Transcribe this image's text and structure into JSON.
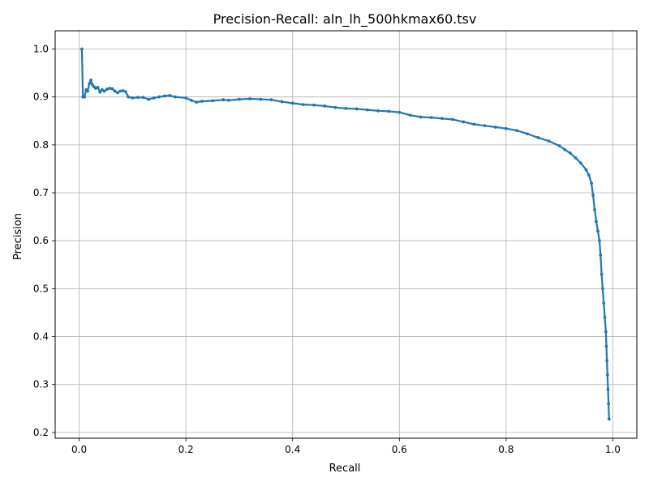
{
  "chart_data": {
    "type": "line",
    "title": "Precision-Recall: aln_lh_500hkmax60.tsv",
    "xlabel": "Recall",
    "ylabel": "Precision",
    "xlim": [
      -0.045,
      1.045
    ],
    "ylim": [
      0.188,
      1.038
    ],
    "xticks": [
      0.0,
      0.2,
      0.4,
      0.6,
      0.8,
      1.0
    ],
    "xtick_labels": [
      "0.0",
      "0.2",
      "0.4",
      "0.6",
      "0.8",
      "1.0"
    ],
    "yticks": [
      0.2,
      0.3,
      0.4,
      0.5,
      0.6,
      0.7,
      0.8,
      0.9,
      1.0
    ],
    "ytick_labels": [
      "0.2",
      "0.3",
      "0.4",
      "0.5",
      "0.6",
      "0.7",
      "0.8",
      "0.9",
      "1.0"
    ],
    "grid": true,
    "color": "#1f77b4",
    "series": [
      {
        "x": [
          0.005,
          0.007,
          0.01,
          0.013,
          0.016,
          0.019,
          0.022,
          0.025,
          0.028,
          0.031,
          0.035,
          0.039,
          0.043,
          0.047,
          0.052,
          0.057,
          0.062,
          0.067,
          0.072,
          0.077,
          0.082,
          0.087,
          0.092,
          0.1,
          0.11,
          0.12,
          0.13,
          0.14,
          0.15,
          0.16,
          0.17,
          0.18,
          0.2,
          0.21,
          0.22,
          0.23,
          0.25,
          0.27,
          0.28,
          0.3,
          0.32,
          0.34,
          0.36,
          0.38,
          0.4,
          0.42,
          0.44,
          0.46,
          0.48,
          0.5,
          0.52,
          0.54,
          0.56,
          0.58,
          0.6,
          0.62,
          0.64,
          0.66,
          0.68,
          0.7,
          0.72,
          0.74,
          0.76,
          0.78,
          0.8,
          0.82,
          0.84,
          0.86,
          0.88,
          0.9,
          0.91,
          0.92,
          0.93,
          0.94,
          0.95,
          0.955,
          0.96,
          0.963,
          0.966,
          0.969,
          0.972,
          0.975,
          0.977,
          0.979,
          0.981,
          0.983,
          0.985,
          0.987,
          0.988,
          0.989,
          0.99,
          0.991,
          0.992,
          0.993
        ],
        "y": [
          1.0,
          0.9,
          0.9,
          0.915,
          0.912,
          0.928,
          0.935,
          0.925,
          0.921,
          0.918,
          0.92,
          0.91,
          0.915,
          0.912,
          0.916,
          0.918,
          0.917,
          0.912,
          0.909,
          0.912,
          0.913,
          0.911,
          0.9,
          0.898,
          0.899,
          0.899,
          0.895,
          0.898,
          0.9,
          0.902,
          0.903,
          0.9,
          0.898,
          0.893,
          0.889,
          0.891,
          0.892,
          0.894,
          0.893,
          0.895,
          0.896,
          0.895,
          0.894,
          0.89,
          0.887,
          0.884,
          0.883,
          0.881,
          0.878,
          0.876,
          0.875,
          0.873,
          0.871,
          0.87,
          0.868,
          0.862,
          0.858,
          0.857,
          0.855,
          0.853,
          0.848,
          0.843,
          0.84,
          0.837,
          0.834,
          0.83,
          0.823,
          0.815,
          0.808,
          0.798,
          0.79,
          0.783,
          0.773,
          0.762,
          0.748,
          0.737,
          0.72,
          0.695,
          0.665,
          0.64,
          0.62,
          0.6,
          0.57,
          0.53,
          0.5,
          0.47,
          0.44,
          0.41,
          0.38,
          0.35,
          0.32,
          0.29,
          0.26,
          0.228
        ]
      }
    ]
  }
}
